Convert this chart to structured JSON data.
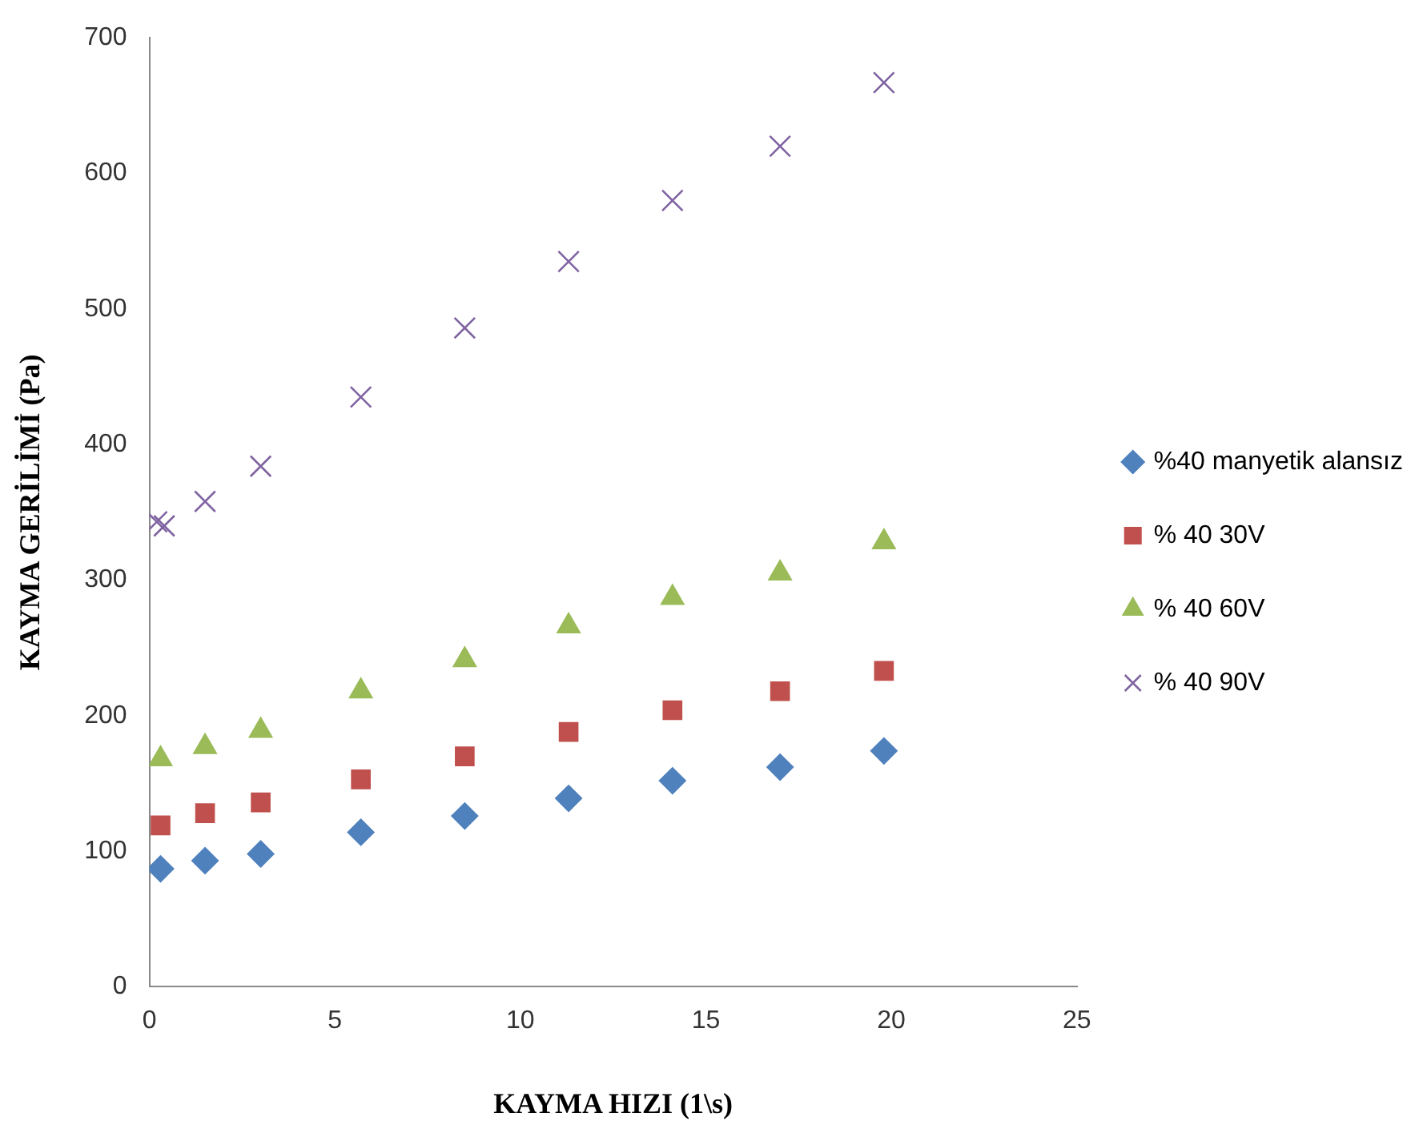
{
  "chart_data": {
    "type": "scatter",
    "xlabel": "KAYMA HIZI (1\\s)",
    "ylabel": "KAYMA GERİLİMİ (Pa)",
    "xlim": [
      0,
      25
    ],
    "xticks": [
      0,
      5,
      10,
      15,
      20,
      25
    ],
    "ylim": [
      0,
      700
    ],
    "yticks": [
      0,
      100,
      200,
      300,
      400,
      500,
      600,
      700
    ],
    "grid": false,
    "legend": "right",
    "x": [
      0.3,
      1.5,
      3,
      5.7,
      8.5,
      11.3,
      14.1,
      17,
      19.8
    ],
    "series": [
      {
        "name": "%40 manyetik alansız",
        "color": "#4f81bd",
        "marker": "diamond",
        "values": [
          87,
          93,
          98,
          114,
          126,
          139,
          152,
          162,
          174
        ]
      },
      {
        "name": "% 40 30V",
        "color": "#c0504d",
        "marker": "square",
        "values": [
          119,
          128,
          136,
          153,
          170,
          188,
          204,
          218,
          233
        ]
      },
      {
        "name": "% 40 60V",
        "color": "#9bbb59",
        "marker": "triangle",
        "values": [
          168,
          177,
          189,
          218,
          241,
          266,
          287,
          305,
          328
        ]
      },
      {
        "name": "% 40 90V",
        "color": "#8064a2",
        "marker": "cross",
        "x": [
          0.2,
          0.4,
          1.5,
          3,
          5.7,
          8.5,
          11.3,
          14.1,
          17,
          19.8
        ],
        "values": [
          343,
          340,
          358,
          384,
          435,
          486,
          535,
          580,
          620,
          667
        ]
      }
    ]
  }
}
